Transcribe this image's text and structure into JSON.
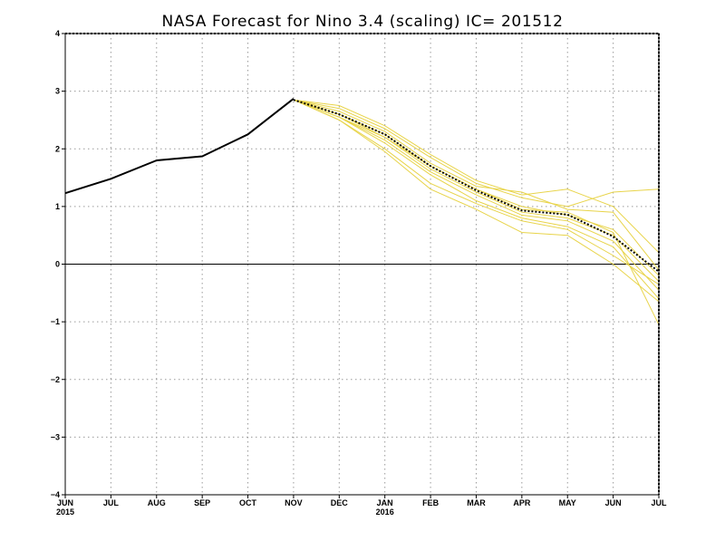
{
  "chart_data": {
    "type": "line",
    "title": "NASA Forecast for Nino 3.4 (scaling) IC= 201512",
    "xlabel": "",
    "ylabel": "",
    "x_ticks": [
      {
        "label": "JUN",
        "sub": "2015"
      },
      {
        "label": "JUL",
        "sub": ""
      },
      {
        "label": "AUG",
        "sub": ""
      },
      {
        "label": "SEP",
        "sub": ""
      },
      {
        "label": "OCT",
        "sub": ""
      },
      {
        "label": "NOV",
        "sub": ""
      },
      {
        "label": "DEC",
        "sub": ""
      },
      {
        "label": "JAN",
        "sub": "2016"
      },
      {
        "label": "FEB",
        "sub": ""
      },
      {
        "label": "MAR",
        "sub": ""
      },
      {
        "label": "APR",
        "sub": ""
      },
      {
        "label": "MAY",
        "sub": ""
      },
      {
        "label": "JUN",
        "sub": ""
      },
      {
        "label": "JUL",
        "sub": ""
      }
    ],
    "y_ticks": [
      "4",
      "3",
      "2",
      "1",
      "0",
      "−1",
      "−2",
      "−3",
      "−4"
    ],
    "ylim": [
      -4,
      4
    ],
    "xlim": [
      0,
      13
    ],
    "grid": true,
    "zero_line": true,
    "colors": {
      "observed": "#000000",
      "ensemble": "#e8d44a",
      "mean": "#000000",
      "grid": "#9a9a9a",
      "frame": "#000000"
    },
    "observed": {
      "x": [
        0,
        1,
        2,
        3,
        4,
        5
      ],
      "values": [
        1.23,
        1.48,
        1.8,
        1.87,
        2.25,
        2.87
      ]
    },
    "ensemble_mean": {
      "x": [
        5,
        6,
        7,
        8,
        9,
        10,
        11,
        12,
        13
      ],
      "values": [
        2.85,
        2.6,
        2.25,
        1.7,
        1.28,
        0.93,
        0.86,
        0.48,
        -0.13
      ]
    },
    "ensemble_members": [
      {
        "x": [
          5,
          6,
          7,
          8,
          9,
          10,
          11,
          12,
          13
        ],
        "values": [
          2.85,
          2.75,
          2.4,
          1.9,
          1.45,
          1.2,
          1.3,
          1.0,
          0.2
        ]
      },
      {
        "x": [
          5,
          6,
          7,
          8,
          9,
          10,
          11,
          12,
          13
        ],
        "values": [
          2.85,
          2.7,
          2.35,
          1.85,
          1.4,
          1.15,
          1.0,
          1.25,
          1.3
        ]
      },
      {
        "x": [
          5,
          6,
          7,
          8,
          9,
          10,
          11,
          12,
          13
        ],
        "values": [
          2.85,
          2.65,
          2.3,
          1.75,
          1.35,
          1.25,
          0.95,
          0.9,
          -0.1
        ]
      },
      {
        "x": [
          5,
          6,
          7,
          8,
          9,
          10,
          11,
          12,
          13
        ],
        "values": [
          2.85,
          2.6,
          2.25,
          1.7,
          1.3,
          1.0,
          0.85,
          0.6,
          -0.2
        ]
      },
      {
        "x": [
          5,
          6,
          7,
          8,
          9,
          10,
          11,
          12,
          13
        ],
        "values": [
          2.85,
          2.6,
          2.2,
          1.65,
          1.25,
          0.9,
          0.8,
          0.5,
          -0.3
        ]
      },
      {
        "x": [
          5,
          6,
          7,
          8,
          9,
          10,
          11,
          12,
          13
        ],
        "values": [
          2.85,
          2.55,
          2.15,
          1.6,
          1.2,
          0.85,
          0.75,
          0.4,
          -0.45
        ]
      },
      {
        "x": [
          5,
          6,
          7,
          8,
          9,
          10,
          11,
          12,
          13
        ],
        "values": [
          2.85,
          2.55,
          2.1,
          1.55,
          1.1,
          0.8,
          0.65,
          0.3,
          -0.6
        ]
      },
      {
        "x": [
          5,
          6,
          7,
          8,
          9,
          10,
          11,
          12,
          13
        ],
        "values": [
          2.85,
          2.5,
          2.0,
          1.4,
          1.05,
          0.75,
          0.6,
          0.15,
          -0.35
        ]
      },
      {
        "x": [
          5,
          6,
          7,
          8,
          9,
          10,
          11,
          12,
          13
        ],
        "values": [
          2.85,
          2.5,
          1.95,
          1.3,
          0.95,
          0.55,
          0.5,
          0.0,
          -0.65
        ]
      },
      {
        "x": [
          5,
          6,
          7,
          8,
          9,
          10,
          11,
          12,
          13
        ],
        "values": [
          2.85,
          2.55,
          2.2,
          1.7,
          1.3,
          0.95,
          0.9,
          0.55,
          -1.05
        ]
      }
    ]
  }
}
